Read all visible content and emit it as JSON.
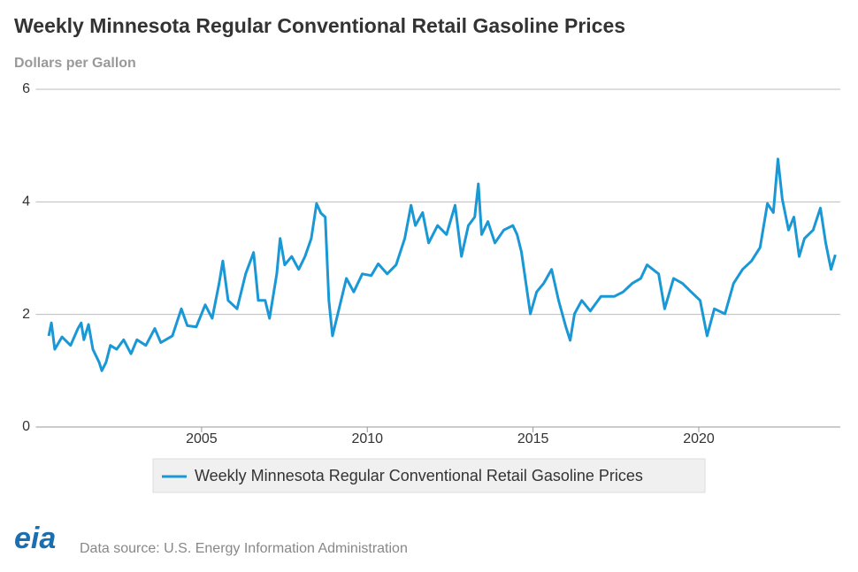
{
  "chart_data": {
    "type": "line",
    "title": "Weekly Minnesota Regular Conventional Retail Gasoline Prices",
    "y_label": "Dollars per Gallon",
    "source": "Data source: U.S. Energy Information Administration",
    "logo": "eia",
    "xlim": [
      2000,
      2024.27
    ],
    "xticks": [
      2005,
      2010,
      2015,
      2020
    ],
    "ylim": [
      0,
      6
    ],
    "yticks": [
      0,
      2,
      4,
      6
    ],
    "grid": true,
    "x": [
      2000.39,
      2000.47,
      2000.57,
      2000.79,
      2001.05,
      2001.27,
      2001.37,
      2001.45,
      2001.59,
      2001.72,
      2001.91,
      2001.99,
      2002.12,
      2002.25,
      2002.44,
      2002.65,
      2002.87,
      2003.05,
      2003.32,
      2003.59,
      2003.77,
      2004.12,
      2004.39,
      2004.57,
      2004.84,
      2005.11,
      2005.32,
      2005.53,
      2005.64,
      2005.8,
      2006.07,
      2006.33,
      2006.57,
      2006.71,
      2006.92,
      2007.05,
      2007.27,
      2007.37,
      2007.51,
      2007.72,
      2007.93,
      2008.12,
      2008.31,
      2008.47,
      2008.6,
      2008.73,
      2008.84,
      2008.95,
      2009.11,
      2009.37,
      2009.59,
      2009.85,
      2010.12,
      2010.33,
      2010.6,
      2010.87,
      2011.13,
      2011.32,
      2011.45,
      2011.67,
      2011.85,
      2012.12,
      2012.39,
      2012.65,
      2012.84,
      2013.05,
      2013.24,
      2013.35,
      2013.45,
      2013.64,
      2013.85,
      2014.12,
      2014.39,
      2014.52,
      2014.65,
      2014.92,
      2015.11,
      2015.32,
      2015.56,
      2015.77,
      2015.99,
      2016.12,
      2016.25,
      2016.47,
      2016.73,
      2017.05,
      2017.45,
      2017.72,
      2017.99,
      2018.25,
      2018.44,
      2018.79,
      2018.97,
      2019.24,
      2019.51,
      2019.77,
      2020.04,
      2020.25,
      2020.47,
      2020.79,
      2021.05,
      2021.32,
      2021.59,
      2021.85,
      2022.07,
      2022.25,
      2022.39,
      2022.52,
      2022.71,
      2022.87,
      2023.03,
      2023.19,
      2023.45,
      2023.67,
      2023.83,
      2023.99,
      2024.12
    ],
    "series": [
      {
        "name": "Weekly Minnesota Regular Conventional Retail Gasoline Prices",
        "color": "#1a98d5",
        "values": [
          1.62,
          1.85,
          1.38,
          1.6,
          1.45,
          1.75,
          1.85,
          1.55,
          1.82,
          1.38,
          1.15,
          1.0,
          1.15,
          1.45,
          1.38,
          1.55,
          1.3,
          1.55,
          1.45,
          1.75,
          1.5,
          1.62,
          2.1,
          1.8,
          1.78,
          2.17,
          1.93,
          2.55,
          2.95,
          2.25,
          2.1,
          2.72,
          3.1,
          2.25,
          2.25,
          1.93,
          2.72,
          3.35,
          2.88,
          3.03,
          2.8,
          3.03,
          3.35,
          3.97,
          3.8,
          3.73,
          2.25,
          1.62,
          2.01,
          2.64,
          2.4,
          2.72,
          2.69,
          2.9,
          2.72,
          2.88,
          3.35,
          3.94,
          3.58,
          3.81,
          3.27,
          3.58,
          3.42,
          3.94,
          3.03,
          3.58,
          3.73,
          4.32,
          3.42,
          3.65,
          3.27,
          3.5,
          3.58,
          3.42,
          3.11,
          2.01,
          2.4,
          2.55,
          2.8,
          2.25,
          1.78,
          1.54,
          2.01,
          2.25,
          2.06,
          2.32,
          2.32,
          2.4,
          2.55,
          2.64,
          2.88,
          2.72,
          2.1,
          2.64,
          2.55,
          2.4,
          2.25,
          1.62,
          2.1,
          2.01,
          2.55,
          2.8,
          2.95,
          3.19,
          3.97,
          3.81,
          4.76,
          4.05,
          3.5,
          3.73,
          3.03,
          3.35,
          3.5,
          3.89,
          3.27,
          2.8,
          3.06
        ]
      }
    ]
  }
}
